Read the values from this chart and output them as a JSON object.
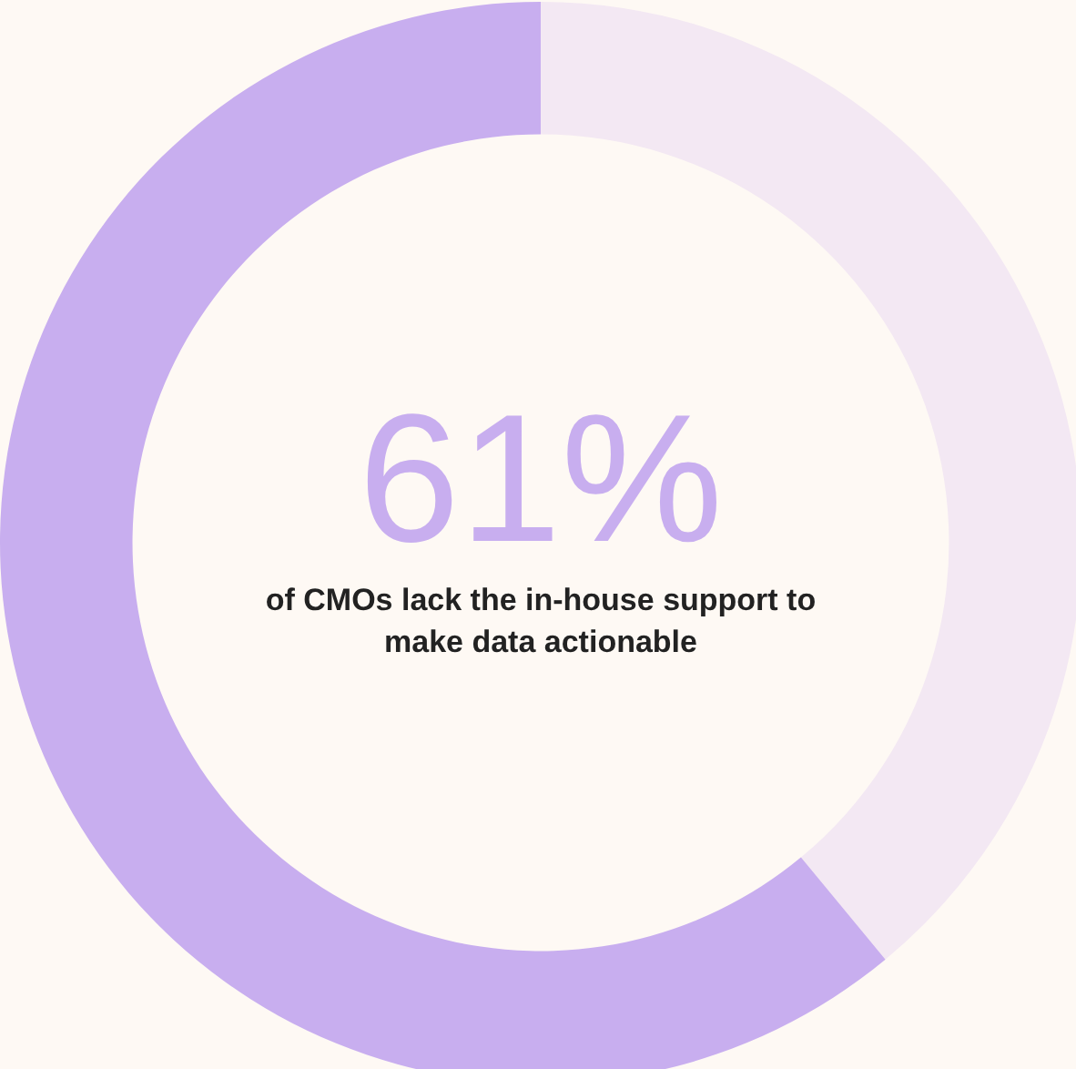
{
  "chart_data": {
    "type": "donut",
    "categories": [
      null,
      null
    ],
    "values": [
      39,
      61
    ],
    "colors": [
      "#f3e8f3",
      "#c8aeef"
    ],
    "value_labels": [
      null,
      "61%"
    ],
    "annotations": [
      "of CMOs lack the in-house support to make data actionable"
    ],
    "legend": false
  }
}
